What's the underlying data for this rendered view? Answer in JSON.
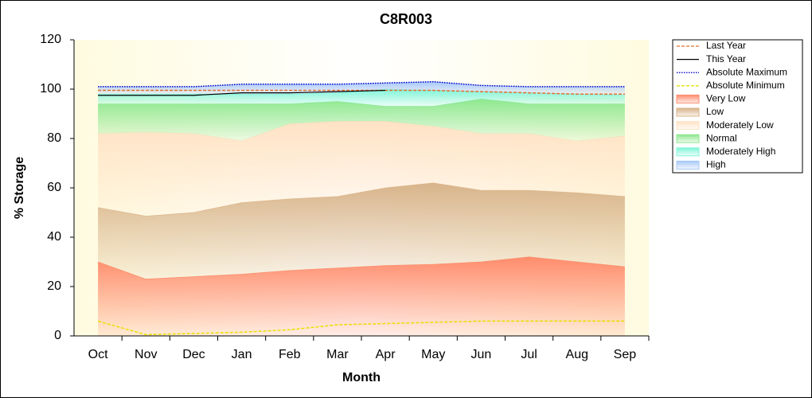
{
  "chart_data": {
    "type": "area",
    "title": "C8R003",
    "x_label": "Month",
    "y_label": "% Storage",
    "categories": [
      "Oct",
      "Nov",
      "Dec",
      "Jan",
      "Feb",
      "Mar",
      "Apr",
      "May",
      "Jun",
      "Jul",
      "Aug",
      "Sep"
    ],
    "ylim": [
      0,
      120
    ],
    "yticks": [
      0,
      20,
      40,
      60,
      80,
      100,
      120
    ],
    "series": [
      {
        "name": "Last Year",
        "type": "line",
        "style": "dashed",
        "color": "#e07030",
        "values": [
          99.5,
          99.5,
          99.5,
          99.5,
          99.5,
          99.5,
          99.5,
          99.5,
          99,
          98.5,
          98,
          98
        ]
      },
      {
        "name": "This Year",
        "type": "line",
        "style": "solid",
        "color": "#000000",
        "values": [
          97.5,
          97.5,
          97.5,
          98.5,
          98.5,
          99,
          99.5,
          null,
          null,
          null,
          null,
          null
        ]
      },
      {
        "name": "Absolute Maximum",
        "type": "line",
        "style": "dotted",
        "color": "#0000cc",
        "values": [
          101,
          101,
          101,
          102,
          102,
          102,
          102.5,
          103,
          101.5,
          101,
          101,
          101
        ]
      },
      {
        "name": "Absolute Minimum",
        "type": "line",
        "style": "dashed",
        "color": "#e8e000",
        "values": [
          6,
          0.5,
          1,
          1.5,
          2.5,
          4.5,
          5,
          5.5,
          6,
          6,
          6,
          6
        ]
      },
      {
        "name": "Very Low",
        "type": "area",
        "color": "#ff8c6c",
        "values": [
          30,
          23,
          24,
          25,
          26.5,
          27.5,
          28.5,
          29,
          30,
          32,
          30,
          28
        ]
      },
      {
        "name": "Low",
        "type": "area",
        "color": "#d8b48a",
        "values": [
          22,
          25.5,
          26,
          29,
          29,
          29,
          31.5,
          33,
          29,
          27,
          28,
          28.5
        ]
      },
      {
        "name": "Moderately Low",
        "type": "area",
        "color": "#ffe2c4",
        "values": [
          30,
          34,
          32,
          25,
          30.5,
          30.5,
          27,
          23,
          23,
          23,
          21,
          24.5
        ]
      },
      {
        "name": "Normal",
        "type": "area",
        "color": "#8ee88e",
        "values": [
          12,
          11.5,
          12,
          15,
          8,
          8,
          6,
          8,
          14,
          12,
          15,
          13
        ]
      },
      {
        "name": "Moderately High",
        "type": "area",
        "color": "#7ff5d8",
        "values": [
          4,
          4,
          4,
          4,
          4,
          3.5,
          7,
          6.5,
          3,
          4.5,
          4,
          3.5
        ]
      },
      {
        "name": "High",
        "type": "area",
        "color": "#a8c8f8",
        "values": [
          3,
          3,
          3,
          4,
          4,
          3.5,
          2.5,
          3.5,
          2.5,
          2.5,
          3,
          3.5
        ]
      }
    ]
  }
}
